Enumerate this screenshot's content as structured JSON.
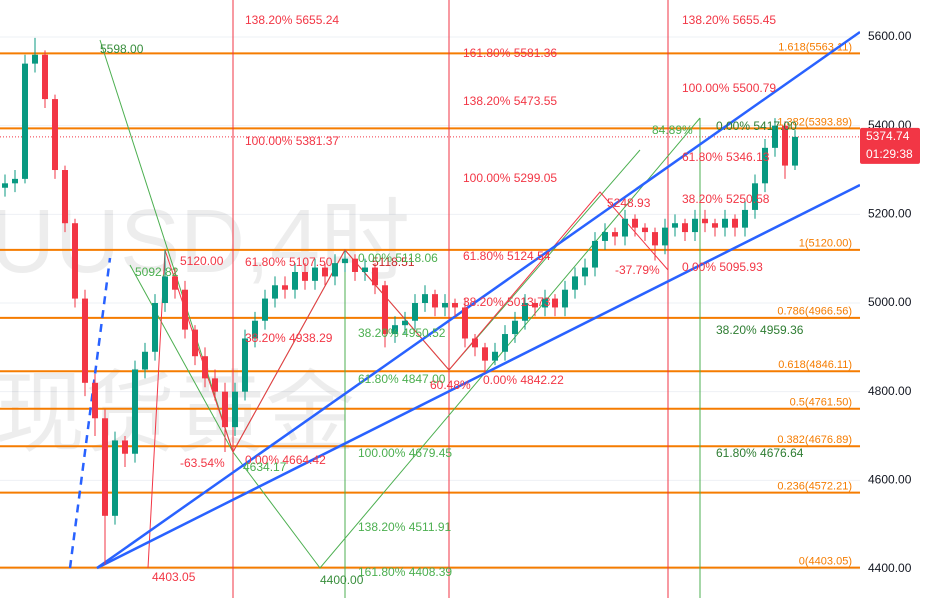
{
  "chart_data": {
    "type": "candlestick",
    "watermark": [
      "UUSD,4时",
      "现货黄金"
    ],
    "up_color": "#089981",
    "down_color": "#f23645",
    "ylim": [
      4334.6,
      5683.5
    ],
    "yticks": [
      {
        "value": 4400,
        "label": "4400.00"
      },
      {
        "value": 4600,
        "label": "4600.00"
      },
      {
        "value": 4800,
        "label": "4800.00"
      },
      {
        "value": 5000,
        "label": "5000.00"
      },
      {
        "value": 5200,
        "label": "5200.00"
      },
      {
        "value": 5400,
        "label": "5400.00"
      },
      {
        "value": 5600,
        "label": "5600.00"
      }
    ],
    "grid": true,
    "last_price": 5374.74,
    "countdown": "01:29:38",
    "fib_levels": [
      {
        "value": 5563.11,
        "label": "1.618(5563.11)"
      },
      {
        "value": 5393.89,
        "label": "1.382(5393.89)"
      },
      {
        "value": 5120.0,
        "label": "1(5120.00)"
      },
      {
        "value": 4966.56,
        "label": "0.786(4966.56)"
      },
      {
        "value": 4846.11,
        "label": "0.618(4846.11)"
      },
      {
        "value": 4761.5,
        "label": "0.5(4761.50)"
      },
      {
        "value": 4676.89,
        "label": "0.382(4676.89)"
      },
      {
        "value": 4572.21,
        "label": "0.236(4572.21)"
      },
      {
        "value": 4403.05,
        "label": "0(4403.05)"
      }
    ],
    "fib_color": "#f57c00",
    "open": [
      5260,
      5270,
      5280,
      5540,
      5560,
      5460,
      5300,
      5180,
      5010,
      4820,
      4740,
      4520,
      4690,
      4660,
      4850,
      4890,
      5000,
      5060,
      5030,
      4940,
      4880,
      4830,
      4800,
      4720,
      4800,
      4920,
      4960,
      5010,
      5040,
      5030,
      5070,
      5050,
      5080,
      5060,
      5090,
      5100,
      5070,
      5080,
      5040,
      4930,
      4950,
      4960,
      5000,
      5020,
      4990,
      5000,
      4990,
      4920,
      4900,
      4870,
      4890,
      4930,
      4960,
      5000,
      4990,
      5010,
      4990,
      5030,
      5060,
      5080,
      5140,
      5160,
      5150,
      5190,
      5170,
      5160,
      5130,
      5170,
      5180,
      5160,
      5190,
      5180,
      5170,
      5190,
      5170,
      5210,
      5270,
      5350,
      5400,
      5310
    ],
    "high": [
      5290,
      5300,
      5560,
      5598,
      5570,
      5470,
      5310,
      5190,
      5030,
      4840,
      4760,
      4710,
      4700,
      4870,
      4910,
      5020,
      5120,
      5080,
      5050,
      4950,
      4900,
      4850,
      4820,
      4820,
      4940,
      4980,
      5030,
      5060,
      5060,
      5090,
      5090,
      5100,
      5090,
      5110,
      5118,
      5110,
      5100,
      5090,
      5050,
      4970,
      4980,
      5020,
      5040,
      5030,
      5020,
      5010,
      5010,
      4930,
      4910,
      4910,
      4950,
      4980,
      5020,
      5010,
      5030,
      5020,
      5050,
      5080,
      5100,
      5160,
      5180,
      5170,
      5210,
      5200,
      5180,
      5170,
      5190,
      5200,
      5190,
      5210,
      5210,
      5190,
      5210,
      5200,
      5230,
      5290,
      5370,
      5417,
      5410,
      5390
    ],
    "low": [
      5240,
      5250,
      5270,
      5520,
      5440,
      5280,
      5160,
      4990,
      4790,
      4700,
      4410,
      4500,
      4630,
      4640,
      4830,
      4870,
      4980,
      5010,
      4920,
      4860,
      4810,
      4780,
      4664,
      4700,
      4780,
      4900,
      4940,
      4990,
      5010,
      5010,
      5030,
      5030,
      5040,
      5040,
      5070,
      5050,
      5050,
      5020,
      4900,
      4910,
      4930,
      4940,
      4980,
      4970,
      4970,
      4970,
      4900,
      4880,
      4842,
      4860,
      4870,
      4910,
      4940,
      4970,
      4970,
      4970,
      4970,
      5010,
      5040,
      5060,
      5120,
      5130,
      5130,
      5150,
      5140,
      5096,
      5110,
      5150,
      5140,
      5140,
      5160,
      5150,
      5150,
      5150,
      5150,
      5190,
      5250,
      5330,
      5280,
      5300
    ],
    "close": [
      5270,
      5280,
      5540,
      5560,
      5460,
      5300,
      5180,
      5010,
      4820,
      4740,
      4520,
      4690,
      4660,
      4850,
      4890,
      5000,
      5060,
      5030,
      4940,
      4880,
      4830,
      4800,
      4720,
      4800,
      4920,
      4960,
      5010,
      5040,
      5030,
      5070,
      5050,
      5080,
      5060,
      5090,
      5100,
      5070,
      5080,
      5040,
      4930,
      4950,
      4960,
      5000,
      5020,
      4990,
      5000,
      4990,
      4920,
      4900,
      4870,
      4890,
      4930,
      4960,
      5000,
      4990,
      5010,
      4990,
      5030,
      5060,
      5080,
      5140,
      5160,
      5150,
      5190,
      5170,
      5160,
      5130,
      5170,
      5180,
      5160,
      5190,
      5180,
      5170,
      5190,
      5170,
      5210,
      5270,
      5350,
      5400,
      5310,
      5374.74
    ],
    "annotations": [
      {
        "text": "138.20% 5655.24",
        "color": "#f23645"
      },
      {
        "text": "100.00% 5381.37",
        "color": "#f23645"
      },
      {
        "text": "61.80% 5107.50",
        "color": "#f23645"
      },
      {
        "text": "38.20% 4938.29",
        "color": "#f23645"
      },
      {
        "text": "0.00% 4664.42",
        "color": "#f23645"
      },
      {
        "text": "161.80% 5581.36",
        "color": "#f23645"
      },
      {
        "text": "138.20% 5473.55",
        "color": "#f23645"
      },
      {
        "text": "100.00% 5299.05",
        "color": "#f23645"
      },
      {
        "text": "61.80% 5124.54",
        "color": "#f23645"
      },
      {
        "text": "38.20% 5013.73",
        "color": "#f23645"
      },
      {
        "text": "0.00% 4842.22",
        "color": "#f23645"
      },
      {
        "text": "138.20% 5655.45",
        "color": "#f23645"
      },
      {
        "text": "100.00% 5500.79",
        "color": "#f23645"
      },
      {
        "text": "61.80% 5346.13",
        "color": "#f23645"
      },
      {
        "text": "38.20% 5250.58",
        "color": "#f23645"
      },
      {
        "text": "0.00% 5095.93",
        "color": "#f23645"
      },
      {
        "text": "5120.00",
        "color": "#f23645"
      },
      {
        "text": "4403.05",
        "color": "#f23645"
      },
      {
        "text": "-63.54%",
        "color": "#f23645"
      },
      {
        "text": "60.48%",
        "color": "#f23645"
      },
      {
        "text": "-37.79%",
        "color": "#f23645"
      },
      {
        "text": "5248.93",
        "color": "#f23645"
      },
      {
        "text": "5118.51",
        "color": "#c62828"
      },
      {
        "text": "5598.00",
        "color": "#388e3c"
      },
      {
        "text": "5092.82",
        "color": "#4caf50"
      },
      {
        "text": "0.00% 5118.06",
        "color": "#4caf50"
      },
      {
        "text": "38.20% 4950.52",
        "color": "#4caf50"
      },
      {
        "text": "61.80% 4847.00",
        "color": "#4caf50"
      },
      {
        "text": "100.00% 4679.45",
        "color": "#4caf50"
      },
      {
        "text": "138.20% 4511.91",
        "color": "#4caf50"
      },
      {
        "text": "161.80% 4408.39",
        "color": "#4caf50"
      },
      {
        "text": "4400.00",
        "color": "#388e3c"
      },
      {
        "text": "4634.17",
        "color": "#4caf50"
      },
      {
        "text": "84.89%",
        "color": "#4caf50"
      },
      {
        "text": "0.00% 5417.00",
        "color": "#2e7d32"
      },
      {
        "text": "38.20% 4959.36",
        "color": "#2e7d32"
      },
      {
        "text": "61.80% 4676.64",
        "color": "#2e7d32"
      }
    ]
  }
}
